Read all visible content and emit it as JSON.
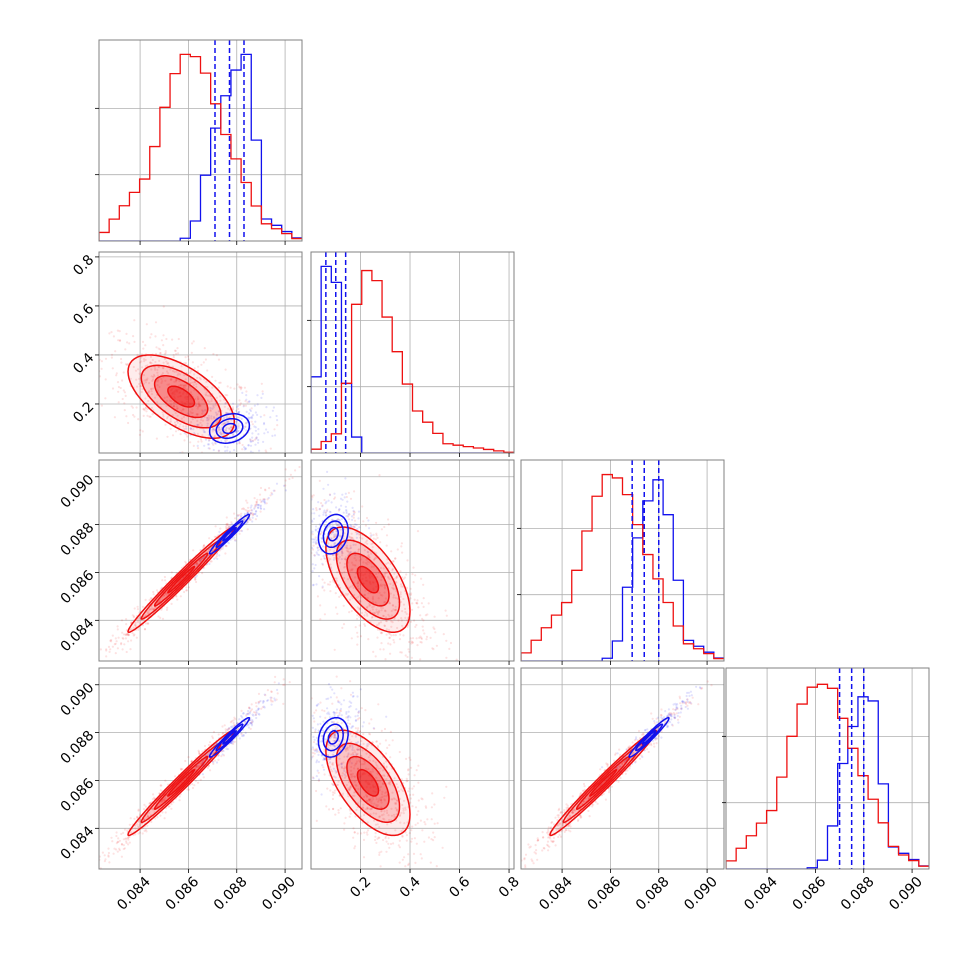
{
  "chart_data": {
    "type": "corner",
    "colors": {
      "red": "#ee1111",
      "blue": "#1111ee",
      "grid": "#b0b0b0",
      "frame": "#808080"
    },
    "params": [
      {
        "range": [
          0.0823,
          0.0907
        ],
        "ticks": [
          0.084,
          0.086,
          0.088,
          0.09
        ],
        "tick_labels": [
          "0.084",
          "0.086",
          "0.088",
          "0.090"
        ]
      },
      {
        "range": [
          0.0,
          0.82
        ],
        "ticks": [
          0.2,
          0.4,
          0.6,
          0.8
        ],
        "tick_labels": [
          "0.2",
          "0.4",
          "0.6",
          "0.8"
        ]
      },
      {
        "range": [
          0.0823,
          0.0907
        ],
        "ticks": [
          0.084,
          0.086,
          0.088,
          0.09
        ],
        "tick_labels": [
          "0.084",
          "0.086",
          "0.088",
          "0.090"
        ]
      },
      {
        "range": [
          0.0823,
          0.0907
        ],
        "ticks": [
          0.084,
          0.086,
          0.088,
          0.09
        ],
        "tick_labels": [
          "0.084",
          "0.086",
          "0.088",
          "0.090"
        ]
      }
    ],
    "histograms": [
      {
        "red": {
          "x": [
            0.0823,
            0.0843,
            0.0853,
            0.0858,
            0.0865,
            0.0876,
            0.0891,
            0.0907
          ],
          "y": [
            0.01,
            0.35,
            0.85,
            1.0,
            0.98,
            0.55,
            0.1,
            0.0
          ]
        },
        "blue": {
          "x": [
            0.0823,
            0.0855,
            0.086,
            0.0864,
            0.087,
            0.0878,
            0.0884,
            0.0888,
            0.0892,
            0.0907
          ],
          "y": [
            0.0,
            0.0,
            0.02,
            0.14,
            0.55,
            0.88,
            1.0,
            0.55,
            0.12,
            0.0
          ]
        },
        "quantiles": [
          0.0871,
          0.0877,
          0.0883
        ]
      },
      {
        "red": {
          "x": [
            0.0,
            0.12,
            0.16,
            0.2,
            0.25,
            0.33,
            0.42,
            0.55,
            0.82
          ],
          "y": [
            0.0,
            0.12,
            0.55,
            0.95,
            1.0,
            0.62,
            0.24,
            0.05,
            0.0
          ]
        },
        "blue": {
          "x": [
            0.0,
            0.02,
            0.06,
            0.1,
            0.13,
            0.17,
            0.22,
            0.82
          ],
          "y": [
            0.0,
            0.4,
            1.0,
            0.95,
            0.5,
            0.12,
            0.0,
            0.0
          ]
        },
        "quantiles": [
          0.06,
          0.1,
          0.14
        ]
      },
      {
        "red": {
          "x": [
            0.0823,
            0.0843,
            0.0853,
            0.0858,
            0.0865,
            0.0876,
            0.0891,
            0.0907
          ],
          "y": [
            0.01,
            0.33,
            0.83,
            1.0,
            0.97,
            0.55,
            0.1,
            0.0
          ]
        },
        "blue": {
          "x": [
            0.0823,
            0.0855,
            0.086,
            0.0864,
            0.0869,
            0.0876,
            0.0881,
            0.0887,
            0.0891,
            0.0907
          ],
          "y": [
            0.0,
            0.0,
            0.02,
            0.14,
            0.55,
            0.88,
            1.0,
            0.55,
            0.12,
            0.0
          ]
        },
        "quantiles": [
          0.0869,
          0.0874,
          0.088
        ]
      },
      {
        "red": {
          "x": [
            0.0823,
            0.0843,
            0.0853,
            0.086,
            0.0867,
            0.0878,
            0.0893,
            0.0907
          ],
          "y": [
            0.01,
            0.33,
            0.85,
            1.0,
            0.97,
            0.55,
            0.1,
            0.0
          ]
        },
        "blue": {
          "x": [
            0.0823,
            0.0857,
            0.0862,
            0.0866,
            0.0871,
            0.0878,
            0.0883,
            0.0887,
            0.0892,
            0.0907
          ],
          "y": [
            0.0,
            0.0,
            0.02,
            0.14,
            0.55,
            0.88,
            1.0,
            0.55,
            0.12,
            0.0
          ]
        },
        "quantiles": [
          0.087,
          0.0875,
          0.088
        ]
      }
    ],
    "contours_2d": [
      {
        "row": 1,
        "col": 0,
        "red": {
          "mean": [
            0.0857,
            0.23
          ],
          "sd": [
            0.0011,
            0.085
          ],
          "rho": -0.6
        },
        "blue": {
          "mean": [
            0.0877,
            0.1
          ],
          "sd": [
            0.00055,
            0.04
          ],
          "rho": 0.2
        }
      },
      {
        "row": 2,
        "col": 0,
        "red": {
          "mean": [
            0.0857,
            0.0857
          ],
          "sd": [
            0.0011,
            0.0011
          ],
          "rho": 0.985
        },
        "blue": {
          "mean": [
            0.0877,
            0.0876
          ],
          "sd": [
            0.00055,
            0.00055
          ],
          "rho": 0.97
        }
      },
      {
        "row": 2,
        "col": 1,
        "red": {
          "mean": [
            0.23,
            0.0857
          ],
          "sd": [
            0.085,
            0.0011
          ],
          "rho": -0.6
        },
        "blue": {
          "mean": [
            0.09,
            0.0876
          ],
          "sd": [
            0.04,
            0.00055
          ],
          "rho": 0.2
        }
      },
      {
        "row": 3,
        "col": 0,
        "red": {
          "mean": [
            0.0857,
            0.0859
          ],
          "sd": [
            0.0011,
            0.0011
          ],
          "rho": 0.985
        },
        "blue": {
          "mean": [
            0.0877,
            0.0878
          ],
          "sd": [
            0.00055,
            0.00055
          ],
          "rho": 0.97
        }
      },
      {
        "row": 3,
        "col": 1,
        "red": {
          "mean": [
            0.23,
            0.0859
          ],
          "sd": [
            0.085,
            0.0011
          ],
          "rho": -0.6
        },
        "blue": {
          "mean": [
            0.09,
            0.0878
          ],
          "sd": [
            0.04,
            0.00055
          ],
          "rho": 0.2
        }
      },
      {
        "row": 3,
        "col": 2,
        "red": {
          "mean": [
            0.0857,
            0.0859
          ],
          "sd": [
            0.0011,
            0.0011
          ],
          "rho": 0.985
        },
        "blue": {
          "mean": [
            0.0876,
            0.0878
          ],
          "sd": [
            0.00055,
            0.00055
          ],
          "rho": 0.97
        }
      }
    ],
    "contour_levels_sigma": [
      0.5,
      1.0,
      1.5,
      2.0
    ]
  }
}
